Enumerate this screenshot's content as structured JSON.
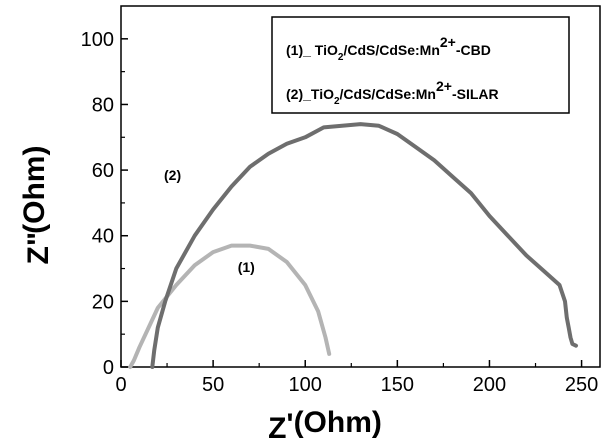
{
  "chart_data": {
    "type": "line",
    "title": "",
    "xlabel": {
      "main": "Z",
      "prime": "'",
      "unit": "(Ohm)"
    },
    "ylabel": {
      "main": "Z",
      "prime": "\"",
      "unit": "(Ohm)"
    },
    "xlim": [
      0,
      260
    ],
    "ylim": [
      0,
      110
    ],
    "xticks": [
      0,
      50,
      100,
      150,
      200,
      250
    ],
    "yticks": [
      0,
      20,
      40,
      60,
      80,
      100
    ],
    "legend": {
      "placement": "top-right",
      "entries": [
        {
          "prefix": "(1)_ TiO",
          "s1": "2",
          "mid": "/CdS/CdSe:Mn",
          "sup": "2+",
          "suffix": "-CBD"
        },
        {
          "prefix": "(2)_TiO",
          "s1": "2",
          "mid": "/CdS/CdSe:Mn",
          "sup": "2+",
          "suffix": "-SILAR"
        }
      ]
    },
    "series": [
      {
        "name": "(1)",
        "color": "#b4b4b4",
        "points": [
          [
            5,
            0
          ],
          [
            7,
            2
          ],
          [
            10,
            6
          ],
          [
            15,
            12
          ],
          [
            20,
            18
          ],
          [
            30,
            25
          ],
          [
            40,
            31
          ],
          [
            50,
            35
          ],
          [
            60,
            37
          ],
          [
            70,
            37
          ],
          [
            80,
            36
          ],
          [
            90,
            32
          ],
          [
            100,
            25
          ],
          [
            107,
            17
          ],
          [
            111,
            9
          ],
          [
            113,
            4
          ]
        ]
      },
      {
        "name": "(2)",
        "color": "#6e6e6e",
        "points": [
          [
            17,
            0
          ],
          [
            18,
            5
          ],
          [
            20,
            12
          ],
          [
            24,
            20
          ],
          [
            30,
            30
          ],
          [
            40,
            40
          ],
          [
            50,
            48
          ],
          [
            60,
            55
          ],
          [
            70,
            61
          ],
          [
            80,
            65
          ],
          [
            90,
            68
          ],
          [
            100,
            70
          ],
          [
            110,
            73
          ],
          [
            120,
            73.5
          ],
          [
            130,
            74
          ],
          [
            140,
            73.5
          ],
          [
            150,
            71
          ],
          [
            160,
            67
          ],
          [
            170,
            63
          ],
          [
            180,
            58
          ],
          [
            190,
            53
          ],
          [
            200,
            46
          ],
          [
            210,
            40
          ],
          [
            220,
            34
          ],
          [
            230,
            29
          ],
          [
            238,
            25
          ],
          [
            241,
            20
          ],
          [
            242,
            15
          ],
          [
            243,
            12
          ],
          [
            244,
            9
          ],
          [
            245,
            7
          ],
          [
            247,
            6.5
          ]
        ]
      }
    ],
    "annotations": [
      {
        "text": "(2)",
        "x": 28,
        "y": 57
      },
      {
        "text": "(1)",
        "x": 68,
        "y": 29
      }
    ]
  }
}
